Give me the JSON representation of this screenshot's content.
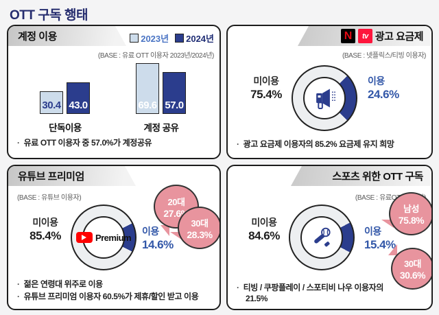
{
  "page": {
    "title": "OTT 구독 행태"
  },
  "colors": {
    "accent_dark_blue": "#2b3d8d",
    "accent_light_blue": "#cddceb",
    "use_label_blue": "#3257a8",
    "ring_gray": "#edeff1",
    "bubble_pink": "#e8949e",
    "netflix_red": "#e50914",
    "tving_red": "#fe153c",
    "youtube_red": "#ff0000",
    "title_navy": "#252c6e"
  },
  "chart_data": [
    {
      "type": "bar",
      "title": "계정 이용",
      "base": "(BASE : 유료 OTT 이용자 2023년/2024년)",
      "categories": [
        "단독이용",
        "계정 공유"
      ],
      "series": [
        {
          "name": "2023년",
          "values": [
            30.4,
            69.6
          ]
        },
        {
          "name": "2024년",
          "values": [
            43.0,
            57.0
          ]
        }
      ],
      "unit": "%",
      "ylim": [
        0,
        100
      ],
      "legend_position": "top-right",
      "annotation": "유료 OTT 이용자 중 57.0%가 계정공유"
    },
    {
      "type": "pie",
      "title": "광고 요금제",
      "base": "(BASE : 넷플릭스/티빙 이용자)",
      "labels": [
        "미이용",
        "이용"
      ],
      "values": [
        75.4,
        24.6
      ],
      "annotation": "광고 요금제 이용자의 85.2% 요금제 유지 희망"
    },
    {
      "type": "pie",
      "title": "유튜브 프리미엄",
      "base": "(BASE : 유튜브 이용자)",
      "labels": [
        "미이용",
        "이용"
      ],
      "values": [
        85.4,
        14.6
      ],
      "callouts": [
        {
          "label": "20대",
          "value": 27.6
        },
        {
          "label": "30대",
          "value": 28.3
        }
      ],
      "annotations": [
        "젊은 연령대 위주로 이용",
        "유튜브 프리미엄 이용자 60.5%가 제휴/할인 받고 이용"
      ]
    },
    {
      "type": "pie",
      "title": "스포츠 위한 OTT 구독",
      "base": "(BASE : 유료OTT 이용자)",
      "labels": [
        "미이용",
        "이용"
      ],
      "values": [
        84.6,
        15.4
      ],
      "callouts": [
        {
          "label": "남성",
          "value": 75.8
        },
        {
          "label": "30대",
          "value": 30.6
        }
      ],
      "annotations": [
        "티빙 / 쿠팡플레이 / 스포티비 나우 이용자의 21.5%"
      ]
    }
  ],
  "panels": {
    "account": {
      "title": "계정 이용",
      "base": "(BASE : 유료 OTT 이용자 2023년/2024년)",
      "legend1": "2023년",
      "legend2": "2024년",
      "cat1": "단독이용",
      "cat2": "계정 공유",
      "v1_2023": "30.4",
      "v1_2024": "43.0",
      "v2_2023": "69.6",
      "v2_2024": "57.0",
      "note": "유료 OTT 이용자 중 57.0%가 계정공유"
    },
    "ad": {
      "title": "광고 요금제",
      "base": "(BASE : 넷플릭스/티빙 이용자)",
      "netflix_letter": "N",
      "tving_letter": "tv",
      "nonuse_label": "미이용",
      "nonuse_pct": "75.4%",
      "use_label": "이용",
      "use_pct": "24.6%",
      "note": "광고 요금제 이용자의 85.2% 요금제 유지 희망"
    },
    "youtube": {
      "title": "유튜브 프리미엄",
      "base": "(BASE : 유튜브 이용자)",
      "center_logo": "Premium",
      "nonuse_label": "미이용",
      "nonuse_pct": "85.4%",
      "use_label": "이용",
      "use_pct": "14.6%",
      "bubble1_line1": "20대",
      "bubble1_line2": "27.6%",
      "bubble2_line1": "30대",
      "bubble2_line2": "28.3%",
      "note1": "젊은 연령대 위주로 이용",
      "note2": "유튜브 프리미엄 이용자 60.5%가 제휴/할인 받고 이용"
    },
    "sports": {
      "title": "스포츠 위한 OTT 구독",
      "base": "(BASE : 유료OTT 이용자)",
      "nonuse_label": "미이용",
      "nonuse_pct": "84.6%",
      "use_label": "이용",
      "use_pct": "15.4%",
      "bubble1_line1": "남성",
      "bubble1_line2": "75.8%",
      "bubble2_line1": "30대",
      "bubble2_line2": "30.6%",
      "note1": "티빙 / 쿠팡플레이 / 스포티비 나우 이용자의",
      "note2": "21.5%"
    }
  }
}
